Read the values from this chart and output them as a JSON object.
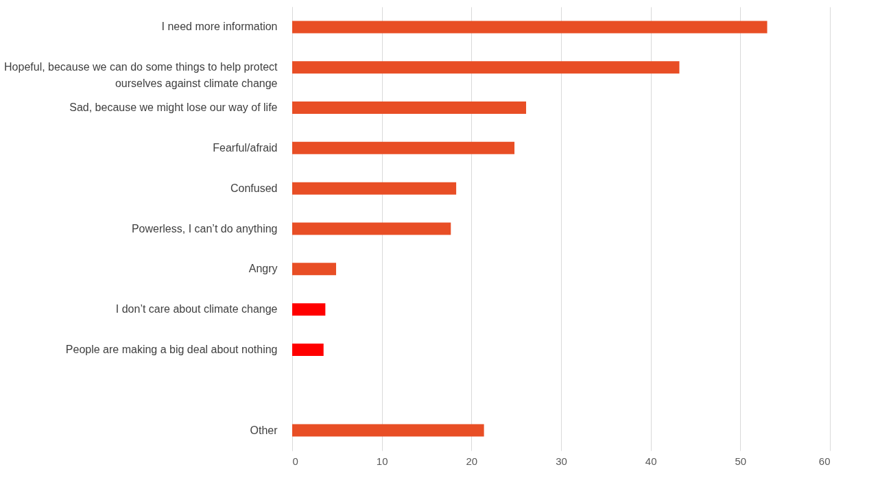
{
  "chart_data": {
    "type": "bar",
    "orientation": "horizontal",
    "categories": [
      "I need more information",
      "Hopeful, because we can do some things to help protect\nourselves against climate change",
      "Sad, because we might lose our way of life",
      "Fearful/afraid",
      "Confused",
      "Powerless, I can’t do anything",
      "Angry",
      "I don’t care about climate change",
      "People are making a big deal about nothing",
      null,
      "Other"
    ],
    "values": [
      53.0,
      43.2,
      26.1,
      24.8,
      18.3,
      17.7,
      4.9,
      3.7,
      3.5,
      null,
      21.4
    ],
    "colors": [
      "#e84e25",
      "#e84e25",
      "#e84e25",
      "#e84e25",
      "#e84e25",
      "#e84e25",
      "#e84e25",
      "#ff0000",
      "#ff0000",
      "#e84e25",
      "#e84e25"
    ],
    "xlim": [
      0,
      60
    ],
    "xticks": [
      0,
      10,
      20,
      30,
      40,
      50,
      60
    ],
    "grid": "x"
  }
}
